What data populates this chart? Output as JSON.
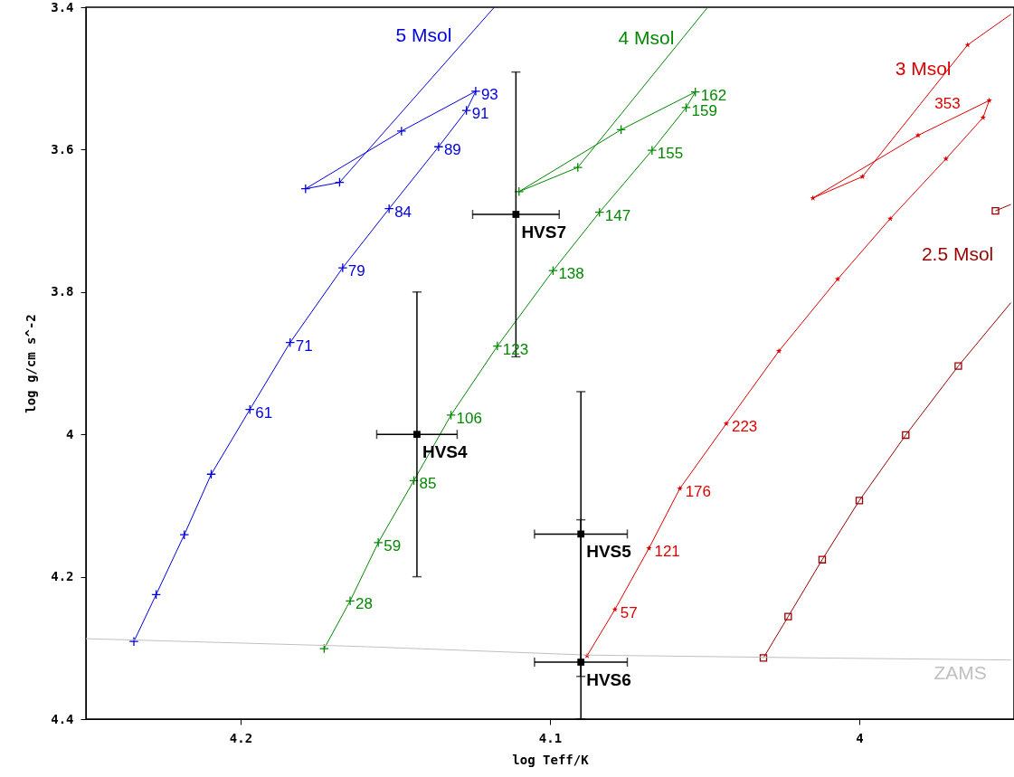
{
  "chart_data": {
    "type": "line",
    "xlabel": "log Teff/K",
    "ylabel": "log g/cm s^-2",
    "xlim": [
      4.25,
      3.95
    ],
    "ylim": [
      4.4,
      3.4
    ],
    "xticks": [
      4.2,
      4.1,
      4
    ],
    "yticks": [
      3.4,
      3.6,
      3.8,
      4,
      4.2,
      4.4
    ],
    "grid": false,
    "legend": false,
    "line_style": "solid",
    "series": [
      {
        "type": "line",
        "color": "#0000dd",
        "marker": "cross",
        "x": [
          4.2345,
          4.2273,
          4.2182,
          4.2095,
          4.197,
          4.184,
          4.167,
          4.152,
          4.136,
          4.127,
          4.124,
          4.148,
          4.179,
          4.168
        ],
        "values": [
          4.291,
          4.225,
          4.141,
          4.056,
          3.965,
          3.871,
          3.766,
          3.683,
          3.596,
          3.545,
          3.518,
          3.574,
          3.655,
          3.646
        ]
      },
      {
        "type": "line",
        "name": "5 Msol",
        "color": "#0000dd",
        "marker": "none",
        "x": [
          4.168,
          4.118
        ],
        "values": [
          3.646,
          3.4
        ]
      },
      {
        "type": "line",
        "color": "#008800",
        "marker": "cross",
        "x": [
          4.173,
          4.1646,
          4.1555,
          4.144,
          4.132,
          4.117,
          4.099,
          4.084,
          4.067,
          4.056,
          4.053,
          4.077,
          4.11,
          4.091
        ],
        "values": [
          4.301,
          4.234,
          4.152,
          4.065,
          3.973,
          3.876,
          3.77,
          3.688,
          3.601,
          3.541,
          3.519,
          3.572,
          3.659,
          3.625
        ]
      },
      {
        "type": "line",
        "name": "4 Msol",
        "color": "#008800",
        "marker": "none",
        "x": [
          4.091,
          4.049
        ],
        "values": [
          3.625,
          3.4
        ]
      },
      {
        "type": "line",
        "color": "#dd0000",
        "marker": "star",
        "x": [
          4.088,
          4.079,
          4.068,
          4.058,
          4.043,
          4.026,
          4.007,
          3.99,
          3.972,
          3.96,
          3.958,
          3.981,
          4.015,
          3.999,
          3.965
        ],
        "values": [
          4.311,
          4.246,
          4.16,
          4.076,
          3.985,
          3.883,
          3.782,
          3.697,
          3.613,
          3.555,
          3.531,
          3.58,
          3.668,
          3.638,
          3.453
        ]
      },
      {
        "type": "line",
        "name": "3 Msol",
        "color": "#dd0000",
        "marker": "none",
        "x": [
          3.965,
          3.951
        ],
        "values": [
          3.453,
          3.41
        ]
      },
      {
        "type": "line",
        "color": "#990000",
        "marker": "square",
        "x": [
          4.031,
          4.023,
          4.012,
          4.0,
          3.985,
          3.968
        ],
        "values": [
          4.314,
          4.256,
          4.176,
          4.093,
          4.001,
          3.904
        ]
      },
      {
        "type": "line",
        "name": "2.5 Msol",
        "color": "#990000",
        "marker": "none",
        "x": [
          3.968,
          3.951
        ],
        "values": [
          3.904,
          3.815
        ]
      },
      {
        "type": "scatter",
        "color": "#990000",
        "marker": "square",
        "x": [
          3.956
        ],
        "values": [
          3.686
        ]
      },
      {
        "type": "line",
        "color": "#990000",
        "marker": "none",
        "x": [
          3.956,
          3.951
        ],
        "values": [
          3.686,
          3.677
        ]
      },
      {
        "type": "line",
        "name": "ZAMS",
        "color": "#c0c0c0",
        "marker": "none",
        "x": [
          4.25,
          4.161,
          4.088,
          4.015,
          3.951
        ],
        "values": [
          4.287,
          4.298,
          4.31,
          4.314,
          4.317
        ]
      },
      {
        "type": "scatter",
        "color": "#000000",
        "marker": "square",
        "x": [
          4.111,
          4.143,
          4.09,
          4.09
        ],
        "values": [
          3.691,
          4.0,
          4.14,
          4.32
        ],
        "errors": [
          0.2,
          0.2,
          0.2,
          [
            4.12,
            4.4
          ]
        ],
        "xerrors": [
          0.014,
          0.013,
          0.015,
          0.015
        ]
      }
    ],
    "annotations": [
      {
        "text": "61",
        "x": 4.197,
        "y": 3.965
      },
      {
        "text": "71",
        "x": 4.184,
        "y": 3.871
      },
      {
        "text": "79",
        "x": 4.167,
        "y": 3.766
      },
      {
        "text": "84",
        "x": 4.152,
        "y": 3.683
      },
      {
        "text": "89",
        "x": 4.136,
        "y": 3.596
      },
      {
        "text": "91",
        "x": 4.127,
        "y": 3.545
      },
      {
        "text": "93",
        "x": 4.124,
        "y": 3.518
      },
      {
        "text": "28",
        "x": 4.1646,
        "y": 4.234
      },
      {
        "text": "59",
        "x": 4.1555,
        "y": 4.152
      },
      {
        "text": "85",
        "x": 4.144,
        "y": 4.065
      },
      {
        "text": "106",
        "x": 4.132,
        "y": 3.973
      },
      {
        "text": "123",
        "x": 4.117,
        "y": 3.876
      },
      {
        "text": "138",
        "x": 4.099,
        "y": 3.77
      },
      {
        "text": "147",
        "x": 4.084,
        "y": 3.688
      },
      {
        "text": "155",
        "x": 4.067,
        "y": 3.601
      },
      {
        "text": "159",
        "x": 4.056,
        "y": 3.541
      },
      {
        "text": "162",
        "x": 4.053,
        "y": 3.519
      },
      {
        "text": "57",
        "x": 4.079,
        "y": 4.246
      },
      {
        "text": "121",
        "x": 4.068,
        "y": 4.16
      },
      {
        "text": "176",
        "x": 4.058,
        "y": 4.076
      },
      {
        "text": "223",
        "x": 4.043,
        "y": 3.985
      },
      {
        "text": "353",
        "x": 3.958,
        "y": 3.531
      },
      {
        "text": "HVS7",
        "x": 4.111,
        "y": 3.691
      },
      {
        "text": "HVS4",
        "x": 4.143,
        "y": 4.0
      },
      {
        "text": "HVS5",
        "x": 4.09,
        "y": 4.14
      },
      {
        "text": "HVS6",
        "x": 4.09,
        "y": 4.32
      }
    ]
  }
}
